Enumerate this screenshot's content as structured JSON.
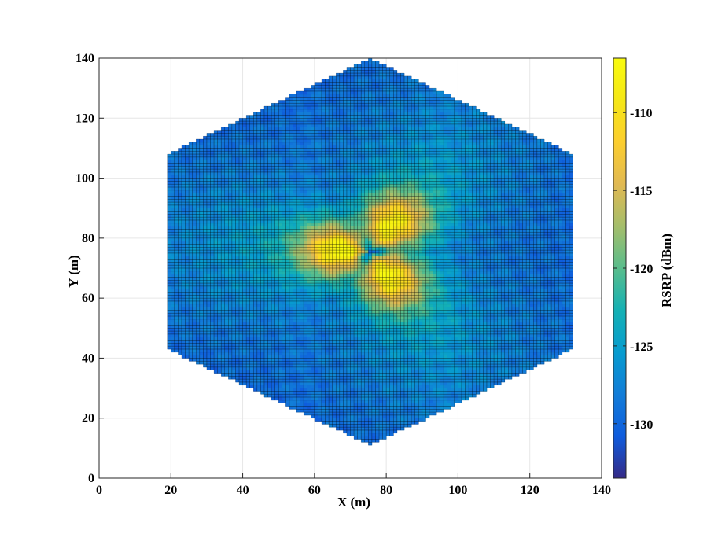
{
  "chart_data": {
    "type": "heatmap",
    "title": "",
    "xlabel": "X (m)",
    "ylabel": "Y (m)",
    "xlim": [
      0,
      140
    ],
    "ylim": [
      0,
      140
    ],
    "xticks": [
      "0",
      "20",
      "40",
      "60",
      "80",
      "100",
      "120",
      "140"
    ],
    "yticks": [
      "0",
      "20",
      "40",
      "60",
      "80",
      "100",
      "120",
      "140"
    ],
    "grid": true,
    "colormap": "parula",
    "colorbar": {
      "label": "RSRP (dBm)",
      "range": [
        -133.5,
        -106.5
      ],
      "ticks": [
        "-110",
        "-115",
        "-120",
        "-125",
        "-130"
      ]
    },
    "region": {
      "shape": "hexagon",
      "center": [
        75.5,
        75.5
      ],
      "vertices": [
        [
          19,
          43
        ],
        [
          19,
          108
        ],
        [
          75.5,
          140
        ],
        [
          132,
          108
        ],
        [
          132,
          43
        ],
        [
          75.5,
          11
        ]
      ]
    },
    "grid_cell_size_m": 1,
    "base_station": [
      75.5,
      75.5
    ],
    "beam_peaks": [
      {
        "sector": 1,
        "x": 67,
        "y": 76,
        "rsrp": -107
      },
      {
        "sector": 2,
        "x": 82,
        "y": 85,
        "rsrp": -108
      },
      {
        "sector": 3,
        "x": 81,
        "y": 67,
        "rsrp": -108
      }
    ],
    "edge_rsrp": -127,
    "min_rsrp": -133
  }
}
